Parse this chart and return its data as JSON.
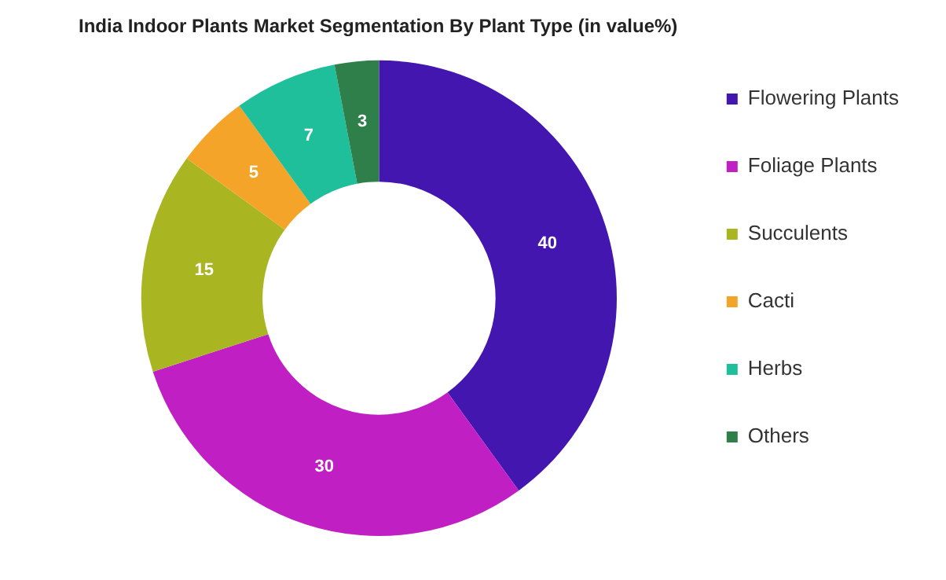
{
  "chart_data": {
    "type": "donut",
    "title": "India Indoor Plants Market Segmentation By Plant Type (in value%)",
    "categories": [
      "Flowering Plants",
      "Foliage Plants",
      "Succulents",
      "Cacti",
      "Herbs",
      "Others"
    ],
    "values": [
      40,
      30,
      15,
      5,
      7,
      3
    ],
    "colors": [
      "#4416b0",
      "#c01fc4",
      "#a9b521",
      "#f5a42a",
      "#20bf9c",
      "#2f7f4a"
    ],
    "data_labels": true,
    "legend": "right"
  }
}
